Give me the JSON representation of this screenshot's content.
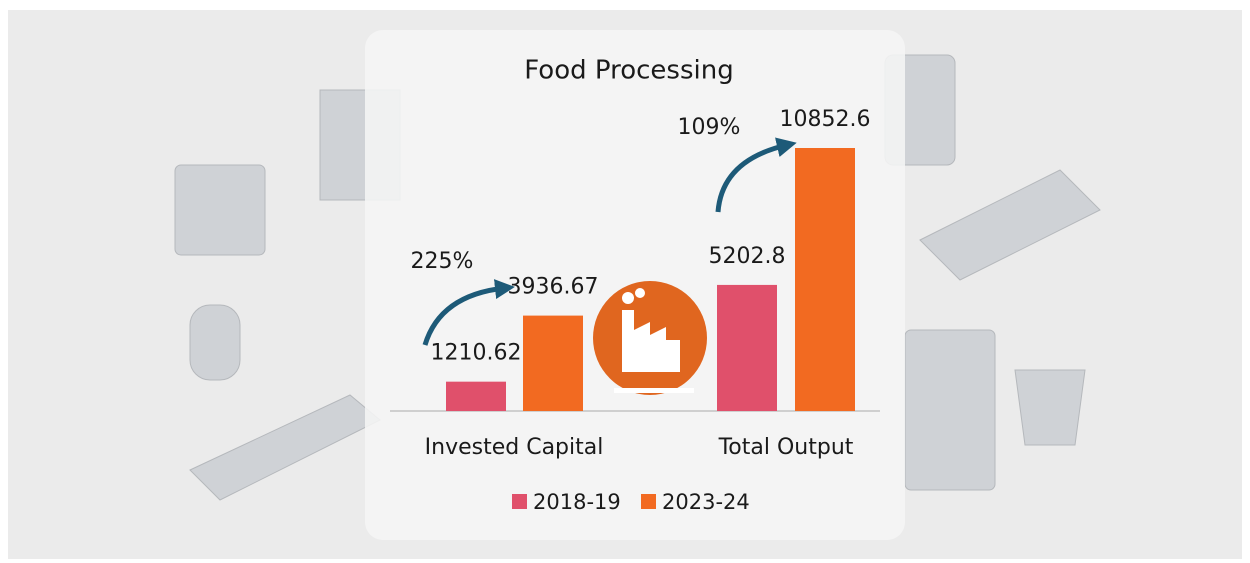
{
  "chart_data": {
    "type": "bar",
    "title": "Food Processing",
    "categories": [
      "Invested Capital",
      "Total Output"
    ],
    "series": [
      {
        "name": "2018-19",
        "color": "#e0506b",
        "values": [
          1210.62,
          5202.8
        ]
      },
      {
        "name": "2023-24",
        "color": "#f26a21",
        "values": [
          3936.67,
          10852.6
        ]
      }
    ],
    "annotations": [
      "225%",
      "109%"
    ]
  }
}
